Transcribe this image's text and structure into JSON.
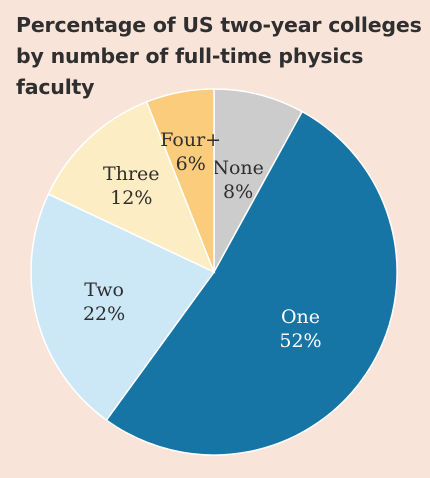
{
  "chart_data": {
    "type": "pie",
    "title_lines": [
      "Percentage of US two-year colleges",
      "by number of full-time physics faculty"
    ],
    "slices": [
      {
        "label": "None",
        "value_label": "8%",
        "value": 8,
        "color": "#cccccc",
        "text_color": "#2f2f2f"
      },
      {
        "label": "One",
        "value_label": "52%",
        "value": 52,
        "color": "#1775a6",
        "text_color": "#ffffff"
      },
      {
        "label": "Two",
        "value_label": "22%",
        "value": 22,
        "color": "#cce8f7",
        "text_color": "#2f2f2f"
      },
      {
        "label": "Three",
        "value_label": "12%",
        "value": 12,
        "color": "#fdedc4",
        "text_color": "#2f2f2f"
      },
      {
        "label": "Four+",
        "value_label": "6%",
        "value": 6,
        "color": "#fbcc7c",
        "text_color": "#2f2f2f"
      }
    ],
    "start": "12 o'clock",
    "direction": "clockwise",
    "legend": "none"
  }
}
